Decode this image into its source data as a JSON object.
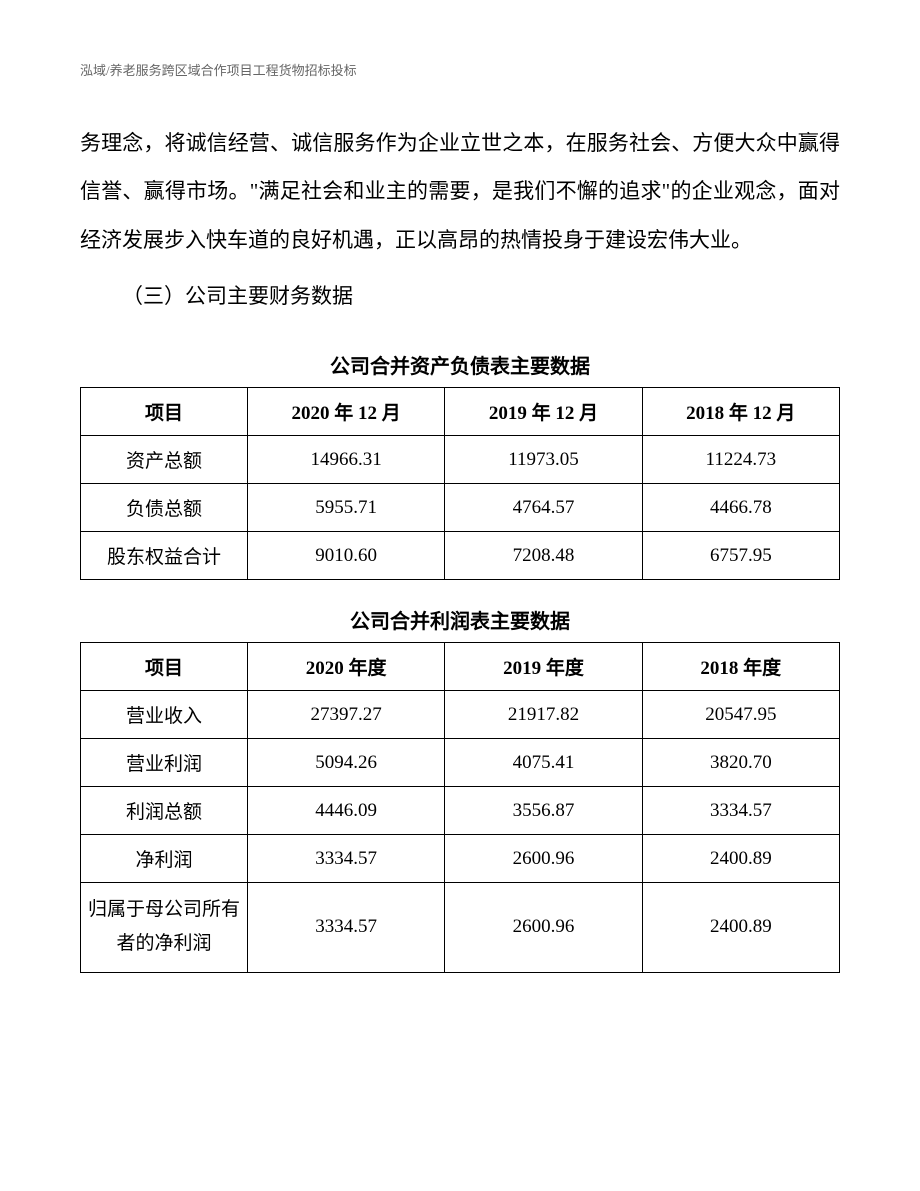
{
  "header": {
    "text": "泓域/养老服务跨区域合作项目工程货物招标投标"
  },
  "body": {
    "paragraph1": "务理念，将诚信经营、诚信服务作为企业立世之本，在服务社会、方便大众中赢得信誉、赢得市场。\"满足社会和业主的需要，是我们不懈的追求\"的企业观念，面对经济发展步入快车道的良好机遇，正以高昂的热情投身于建设宏伟大业。",
    "section_heading": "（三）公司主要财务数据"
  },
  "tables": {
    "balance_sheet": {
      "title": "公司合并资产负债表主要数据",
      "columns": [
        "项目",
        "2020 年 12 月",
        "2019 年 12 月",
        "2018 年 12 月"
      ],
      "rows": [
        [
          "资产总额",
          "14966.31",
          "11973.05",
          "11224.73"
        ],
        [
          "负债总额",
          "5955.71",
          "4764.57",
          "4466.78"
        ],
        [
          "股东权益合计",
          "9010.60",
          "7208.48",
          "6757.95"
        ]
      ]
    },
    "income_statement": {
      "title": "公司合并利润表主要数据",
      "columns": [
        "项目",
        "2020 年度",
        "2019 年度",
        "2018 年度"
      ],
      "rows": [
        [
          "营业收入",
          "27397.27",
          "21917.82",
          "20547.95"
        ],
        [
          "营业利润",
          "5094.26",
          "4075.41",
          "3820.70"
        ],
        [
          "利润总额",
          "4446.09",
          "3556.87",
          "3334.57"
        ],
        [
          "净利润",
          "3334.57",
          "2600.96",
          "2400.89"
        ],
        [
          "归属于母公司所有者的净利润",
          "3334.57",
          "2600.96",
          "2400.89"
        ]
      ]
    }
  },
  "style": {
    "background_color": "#ffffff",
    "text_color": "#000000",
    "header_color": "#666666",
    "border_color": "#000000",
    "body_font_size": 21,
    "table_font_size": 19,
    "header_font_size": 13,
    "table_title_font_size": 20
  }
}
